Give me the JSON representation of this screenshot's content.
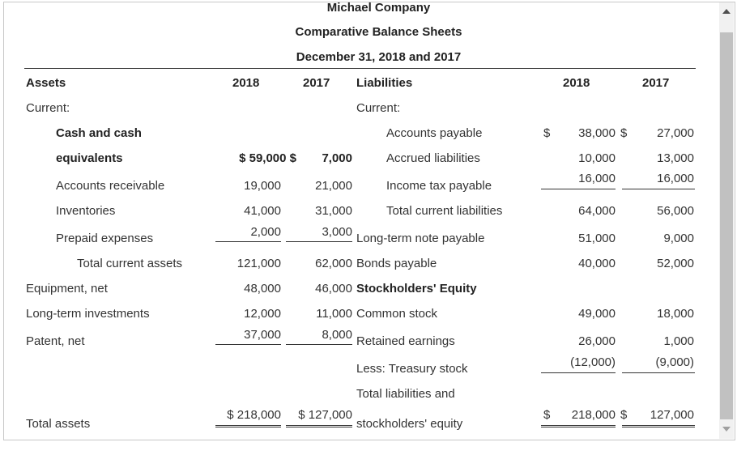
{
  "header": {
    "company": "Michael Company",
    "title": "Comparative Balance Sheets",
    "date": "December 31, 2018 and 2017"
  },
  "columns": {
    "assets": "Assets",
    "liabilities": "Liabilities",
    "y2018": "2018",
    "y2017": "2017"
  },
  "left": {
    "current": "Current:",
    "cash1": "Cash and cash",
    "cash2": "equivalents",
    "cash_2018": "$   59,000 $",
    "cash_2017": "7,000",
    "ar": "Accounts receivable",
    "ar_2018": "19,000",
    "ar_2017": "21,000",
    "inv": "Inventories",
    "inv_2018": "41,000",
    "inv_2017": "31,000",
    "prepaid": "Prepaid expenses",
    "prepaid_2018": "2,000",
    "prepaid_2017": "3,000",
    "tca": "Total current assets",
    "tca_2018": "121,000",
    "tca_2017": "62,000",
    "equip": "Equipment, net",
    "equip_2018": "48,000",
    "equip_2017": "46,000",
    "lti": "Long-term investments",
    "lti_2018": "12,000",
    "lti_2017": "11,000",
    "patent": "Patent, net",
    "patent_2018": "37,000",
    "patent_2017": "8,000",
    "total": "Total assets",
    "total_2018": "$  218,000",
    "total_2017": "$  127,000"
  },
  "right": {
    "current": "Current:",
    "ap": "Accounts payable",
    "ap_2018": "38,000",
    "ap_2017": "27,000",
    "accrued": "Accrued liabilities",
    "accrued_2018": "10,000",
    "accrued_2017": "13,000",
    "itp": "Income tax payable",
    "itp_2018": "16,000",
    "itp_2017": "16,000",
    "tcl": "Total current liabilities",
    "tcl_2018": "64,000",
    "tcl_2017": "56,000",
    "ltnp": "Long-term note payable",
    "ltnp_2018": "51,000",
    "ltnp_2017": "9,000",
    "bonds": "Bonds payable",
    "bonds_2018": "40,000",
    "bonds_2017": "52,000",
    "se": "Stockholders' Equity",
    "cs": "Common stock",
    "cs_2018": "49,000",
    "cs_2017": "18,000",
    "re": "Retained earnings",
    "re_2018": "26,000",
    "re_2017": "1,000",
    "ts": "Less: Treasury stock",
    "ts_2018": "(12,000)",
    "ts_2017": "(9,000)",
    "total1": "Total liabilities and",
    "total2": "stockholders' equity",
    "total_2018": "218,000",
    "total_2017": "127,000",
    "dollar": "$"
  }
}
